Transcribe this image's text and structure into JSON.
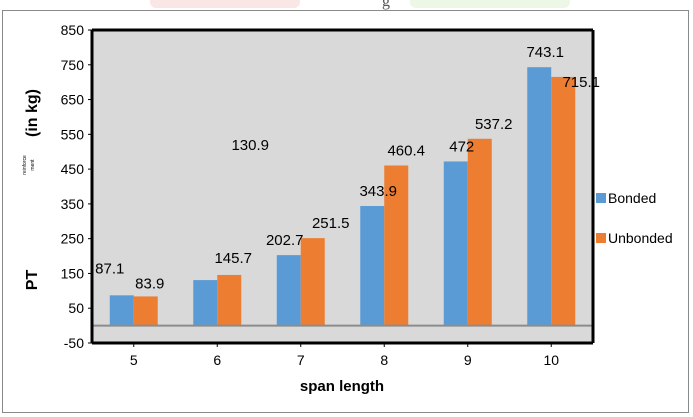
{
  "header_fragment": "g",
  "chart_data": {
    "type": "bar",
    "categories": [
      "5",
      "6",
      "7",
      "8",
      "9",
      "10"
    ],
    "series": [
      {
        "name": "Bonded",
        "values": [
          87.1,
          130.9,
          202.7,
          343.9,
          472,
          743.1
        ],
        "color": "#5b9bd5"
      },
      {
        "name": "Unbonded",
        "values": [
          83.9,
          145.7,
          251.5,
          460.4,
          537.2,
          715.1
        ],
        "color": "#ed7d31"
      }
    ],
    "ylim": [
      -50,
      850
    ],
    "yticks": [
      -50,
      50,
      150,
      250,
      350,
      450,
      550,
      650,
      750,
      850
    ],
    "xlabel": "span length",
    "ylabel": "PT",
    "ylabel_unit": "(in kg)",
    "ylabel_small_1": "reinforce",
    "ylabel_small_2": "ment",
    "legend_position": "right",
    "grid": false,
    "plot_background": "#d9d9d9"
  }
}
